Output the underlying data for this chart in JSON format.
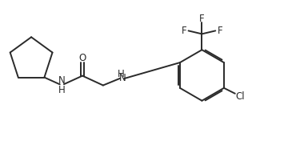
{
  "bg_color": "#ffffff",
  "line_color": "#2a2a2a",
  "line_width": 1.4,
  "font_size": 8.5,
  "fig_width": 3.55,
  "fig_height": 1.76,
  "dpi": 100,
  "xlim": [
    0.0,
    3.55
  ],
  "ylim": [
    0.0,
    1.76
  ]
}
